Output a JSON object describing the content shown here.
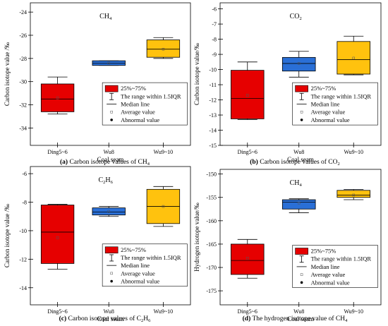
{
  "legend": {
    "items": [
      {
        "key": "box",
        "label": "25%~75%"
      },
      {
        "key": "whisker",
        "label": "The range within 1.5IQR"
      },
      {
        "key": "median",
        "label": "Median line"
      },
      {
        "key": "mean",
        "label": "Average value"
      },
      {
        "key": "outlier",
        "label": "Abnormal value"
      }
    ]
  },
  "colors": {
    "Ding5~6": "#e60000",
    "Wu8": "#2a6fd6",
    "Wu9~10": "#ffc20e"
  },
  "chart_data": [
    {
      "type": "box",
      "panel": "a",
      "title": "CH",
      "title_sub": "4",
      "caption_tag": "(a)",
      "caption": "Carbon isotope values of CH",
      "caption_sub": "4",
      "xlabel": "Coal seam",
      "ylabel": "Carbon isotope value /‰",
      "categories": [
        "Ding5~6",
        "Wu8",
        "Wu9~10"
      ],
      "ylim": [
        -35.5,
        -23.2
      ],
      "yticks": [
        -34,
        -32,
        -30,
        -28,
        -26,
        -24
      ],
      "boxes": [
        {
          "whisker_low": -32.8,
          "q1": -32.6,
          "median": -31.5,
          "q3": -30.2,
          "whisker_high": -29.6,
          "mean": -31.4
        },
        {
          "whisker_low": -28.6,
          "q1": -28.6,
          "median": -28.4,
          "q3": -28.2,
          "whisker_high": -28.2,
          "mean": -28.4
        },
        {
          "whisker_low": -28.0,
          "q1": -27.9,
          "median": -27.2,
          "q3": -26.4,
          "whisker_high": -26.2,
          "mean": -27.2
        }
      ]
    },
    {
      "type": "box",
      "panel": "b",
      "title": "CO",
      "title_sub": "2",
      "caption_tag": "(b)",
      "caption": "Carbon isotope values of CO",
      "caption_sub": "2",
      "xlabel": "Coal seam",
      "ylabel": "Carbon isotope value/‰",
      "categories": [
        "Ding5~6",
        "Wu8",
        "Wu9~10"
      ],
      "ylim": [
        -15,
        -5.6
      ],
      "yticks": [
        -15,
        -14,
        -13,
        -12,
        -11,
        -10,
        -9,
        -8,
        -7,
        -6
      ],
      "boxes": [
        {
          "whisker_low": -13.3,
          "q1": -13.25,
          "median": -11.9,
          "q3": -10.05,
          "whisker_high": -9.5,
          "mean": -11.7
        },
        {
          "whisker_low": -10.5,
          "q1": -10.1,
          "median": -9.6,
          "q3": -9.2,
          "whisker_high": -8.8,
          "mean": -9.6
        },
        {
          "whisker_low": -10.35,
          "q1": -10.3,
          "median": -9.35,
          "q3": -8.15,
          "whisker_high": -7.8,
          "mean": -9.25
        }
      ]
    },
    {
      "type": "box",
      "panel": "c",
      "title": "C",
      "title_sub": "2",
      "title_rest": "H",
      "title_sub2": "6",
      "caption_tag": "(c)",
      "caption": "Carbon isotope values of C",
      "caption_sub": "2",
      "caption_rest": "H",
      "caption_sub2": "6",
      "xlabel": "Coal seam",
      "ylabel": "Carbon isotope value /‰",
      "categories": [
        "Ding5~6",
        "Wu8",
        "Wu9~10"
      ],
      "ylim": [
        -15.2,
        -5.5
      ],
      "yticks": [
        -14,
        -12,
        -10,
        -8,
        -6
      ],
      "boxes": [
        {
          "whisker_low": -12.7,
          "q1": -12.3,
          "median": -10.1,
          "q3": -8.2,
          "whisker_high": -8.15,
          "mean": -10.5
        },
        {
          "whisker_low": -9.0,
          "q1": -8.9,
          "median": -8.7,
          "q3": -8.4,
          "whisker_high": -8.3,
          "mean": -8.65
        },
        {
          "whisker_low": -9.7,
          "q1": -9.5,
          "median": -8.3,
          "q3": -7.1,
          "whisker_high": -6.9,
          "mean": -8.3
        }
      ]
    },
    {
      "type": "box",
      "panel": "d",
      "title": "CH",
      "title_sub": "4",
      "caption_tag": "(d)",
      "caption": "The hydrogen isotope value of CH",
      "caption_sub": "4",
      "xlabel": "Coal seam",
      "ylabel": "Hydrogen isotope value/‰",
      "categories": [
        "Ding5~6",
        "Wu8",
        "Wu9~10"
      ],
      "ylim": [
        -178,
        -149
      ],
      "yticks": [
        -175,
        -170,
        -165,
        -160,
        -155,
        -150
      ],
      "boxes": [
        {
          "whisker_low": -172.3,
          "q1": -171.5,
          "median": -168.5,
          "q3": -165.0,
          "whisker_high": -164.0,
          "mean": -168.0
        },
        {
          "whisker_low": -158.3,
          "q1": -157.5,
          "median": -156.0,
          "q3": -155.5,
          "whisker_high": -155.3,
          "mean": -156.2
        },
        {
          "whisker_low": -155.5,
          "q1": -155.0,
          "median": -154.5,
          "q3": -153.5,
          "whisker_high": -153.3,
          "mean": -154.5
        }
      ]
    }
  ]
}
